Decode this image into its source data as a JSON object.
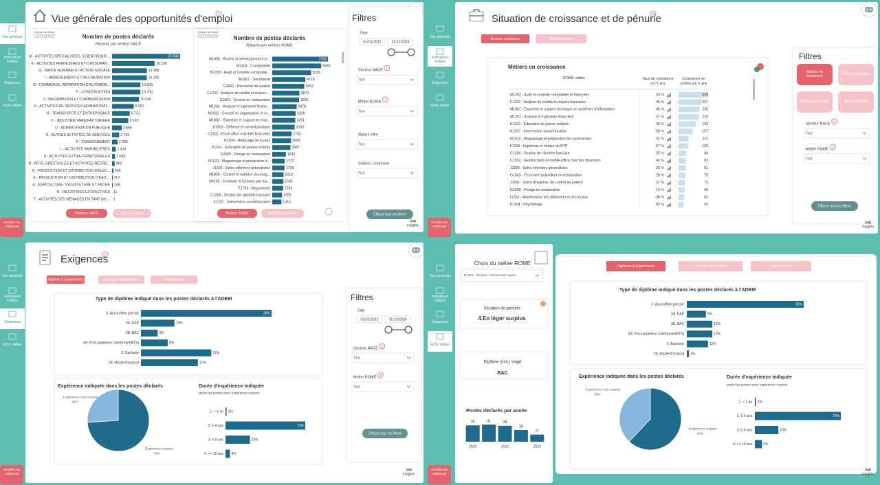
{
  "nav": {
    "items": [
      "Vue générale",
      "Indicateurs métiers",
      "Exigences",
      "Fiche métier"
    ],
    "jobboard": "Accéder au Jobboard"
  },
  "logo": [
    "Job",
    "insights"
  ],
  "filters": {
    "title": "Filtres",
    "date": "Date",
    "start": "01/01/2021",
    "end": "31/12/2024",
    "nace": "Secteur NACE",
    "rome": "Métier ROME",
    "nature": "Nature offre",
    "canton": "Canton, commune",
    "all": "Tout",
    "clear": "Effacer tous les filtres"
  },
  "overview": {
    "title": "Vue générale des opportunités d'emploi",
    "detail_level": "Niveau de détail",
    "detail_levels": [
      "1",
      "2",
      "3",
      "4",
      "5"
    ],
    "nace_buttons": [
      "Secteurs NACE",
      "Lieu de travail"
    ],
    "rome_buttons": [
      "Métiers ROME",
      "Métiers en pénurie"
    ]
  },
  "growth": {
    "title": "Situation de croissance et de pénurie",
    "tabs": [
      "Analyse croissance",
      "Analyse pénurie"
    ],
    "filter_buttons": [
      "Métiers en croissance",
      "Métiers émergents",
      "Métiers en tension",
      "Autres métiers"
    ],
    "table": {
      "title": "Métiers en croissance",
      "columns": [
        "ROME métier",
        "Taux de croissance sur 5 ans",
        "Croissance en postes sur 5 ans"
      ],
      "rows": [
        [
          "M1202 - Audit et contrôle comptables et financiers",
          "33 %",
          329
        ],
        [
          "C1202 - Analyse de crédits et risques bancaires",
          "45 %",
          257
        ],
        [
          "M1802 - Expertise et support technique en systèmes d'information",
          "45 %",
          235
        ],
        [
          "M1201 - Analyse et ingénierie financière",
          "37 %",
          226
        ],
        [
          "K1202 - Éducation de jeunes enfants",
          "36 %",
          192
        ],
        [
          "K1207 - Intervention socioéducative",
          "58 %",
          157
        ],
        [
          "N1103 - Magasinage et préparation de commandes",
          "32 %",
          112
        ],
        [
          "F1106 - Ingénierie et études du BTP",
          "57 %",
          109
        ],
        [
          "C1206 - Gestion de clientèle bancaire",
          "35 %",
          84
        ],
        [
          "C1302 - Gestion back et middle-office marchés financiers",
          "42 %",
          82
        ],
        [
          "J1506 - Soins infirmiers généralistes",
          "23 %",
          81
        ],
        [
          "G1603 - Personnel polyvalent en restauration",
          "28 %",
          75
        ],
        [
          "J1501 - Soins d'hygiène, de confort du patient",
          "37 %",
          72
        ],
        [
          "G1605 - Plonge en restauration",
          "16 %",
          69
        ],
        [
          "I1203 - Maintenance des bâtiments et des locaux",
          "38 %",
          63
        ],
        [
          "K1104 - Psychologie",
          "83 %",
          56
        ]
      ]
    }
  },
  "requirements": {
    "title": "Exigences",
    "tabs": [
      "Diplôme & Expériences",
      "Langues demandées",
      "Compétences"
    ]
  },
  "job_sheet": {
    "choice_title": "Choix du métier ROME",
    "choice_value": "D1403 - Relation commerciale auprè...",
    "shortage_title": "Situation de pénurie",
    "shortage_value": "4.En léger surplus",
    "diploma_title": "Diplôme (min.) exigé",
    "diploma_value": "BAC",
    "tabs": [
      "Diplômes & Expériences",
      "Langues demandées",
      "Compétences"
    ]
  },
  "chart_data": [
    {
      "type": "bar",
      "orientation": "horizontal",
      "title": "Nombre de postes déclarés",
      "subtitle": "Répartis par secteur NACE",
      "color": "#1e6b8c",
      "categories": [
        "M - ACTIVITÉS SPÉCIALISÉES, SCIENTIFIQUE...",
        "K - ACTIVITÉS FINANCIÈRES ET D'ASSURAN...",
        "Q - SANTÉ HUMAINE ET ACTION SOCIALE",
        "I - HÉBERGEMENT ET RESTAURATION",
        "G - COMMERCE; RÉPARATION D'AUTOMOB...",
        "F - CONSTRUCTION",
        "J - INFORMATION ET COMMUNICATION",
        "N - ACTIVITÉS DE SERVICES ADMINISTRAT...",
        "H - TRANSPORTS ET ENTREPOSAGE",
        "C - INDUSTRIE MANUFACTURIÈRE",
        "O - ADMINISTRATION PUBLIQUE",
        "S - AUTRES ACTIVITÉS DE SERVICES",
        "P - ENSEIGNEMENT",
        "L - ACTIVITÉS IMMOBILIÈRES",
        "U - ACTIVITÉS EXTRA-TERRITORIALES",
        "R - ARTS, SPECTACLES ET ACTIVITÉS RÉCRÉ...",
        "D - PRODUCTION ET DISTRIBUTION D'ÉLEC...",
        "E - PRODUCTION ET DISTRIBUTION D'EAU;...",
        "A - AGRICULTURE, SYLVICULTURE ET PÊCHE",
        "B - INDUSTRIES EXTRACTIVES",
        "T - ACTIVITÉS DES MÉNAGES EN TANT QU'..."
      ],
      "values": [
        25944,
        16206,
        13288,
        13242,
        10805,
        10793,
        10240,
        8261,
        6731,
        6163,
        3666,
        2703,
        2066,
        1419,
        1099,
        992,
        499,
        267,
        248,
        11,
        1
      ],
      "value_labels": [
        "25 944",
        "16 206",
        "13 288",
        "13 242",
        "10 805",
        "10 793",
        "10 240",
        "8 261",
        "6 731",
        "6 163",
        "3 666",
        "2 703",
        "2 066",
        "1 419",
        "1 099",
        "992",
        "499",
        "267",
        "248",
        "11",
        "1"
      ]
    },
    {
      "type": "bar",
      "orientation": "horizontal",
      "title": "Nombre de postes déclarés",
      "subtitle": "Répartis par métiers ROME",
      "color": "#1e6b8c",
      "categories": [
        "M1805 - Études et développement in...",
        "M1203 - Comptabilité",
        "M1202 - Audit et contrôle comptable...",
        "M1607 - Secrétariat",
        "G1602 - Personnel de cuisine",
        "C1202 - Analyse de crédits et risques ...",
        "G1803 - Service en restauration",
        "M1201 - Analyse et ingénierie financi...",
        "M1402 - Conseil en organisation et m...",
        "M1802 - Expertise et support techniq...",
        "K1903 - Défense et conseil juridique",
        "C1301 - Front office marchés financiers",
        "K2204 - Nettoyage de locaux",
        "K1202 - Éducation de jeunes enfants",
        "G1605 - Plonge en restauration",
        "N1103 - Magasinage et préparation d...",
        "J1506 - Soins infirmiers généralistes",
        "M1806 - Conseil et maîtrise d'ouvrag...",
        "N4105 - Conduite et livraison par tou...",
        "F1703 - Maçonnerie",
        "C1206 - Gestion de clientèle bancaire",
        "K1207 - Intervention socioéducative"
      ],
      "values": [
        7938,
        6966,
        5535,
        4718,
        4562,
        3879,
        3820,
        3478,
        3326,
        3281,
        3193,
        2763,
        2669,
        2587,
        1933,
        1772,
        1738,
        1610,
        1585,
        1553,
        1393,
        1314
      ]
    },
    {
      "type": "bar",
      "orientation": "horizontal",
      "title": "Type de diplôme indiqué dans les postes déclarés à l'ADEM",
      "color": "#1e6b8c",
      "categories": [
        "0. Aucun/Non précisé",
        "3A. DAP",
        "3B. BAC",
        "4/5. Post-supérieur (14e/brevet/BTS)",
        "6. Bachelor",
        "7/8. Master/Doctorat"
      ],
      "values": [
        39,
        10,
        5,
        8,
        21,
        17
      ],
      "value_labels": [
        "39%",
        "10%",
        "5%",
        "8%",
        "21%",
        "17%"
      ]
    },
    {
      "type": "pie",
      "title": "Expérience indiquée dans les postes déclarés",
      "categories": [
        "Expérience non requise",
        "Expérience requise"
      ],
      "values": [
        26,
        74
      ],
      "value_labels": [
        "26%",
        "74%"
      ],
      "colors": [
        "#86b6dc",
        "#1e6b8c"
      ]
    },
    {
      "type": "bar",
      "orientation": "horizontal",
      "title": "Durée d'expérience indiquée",
      "subtitle": "parmi les postes avec expérience requise",
      "color": "#1e6b8c",
      "categories": [
        "1. < 1 an",
        "2. 1-4 ans",
        "3. 5-9 ans",
        "4. >= 10 ans"
      ],
      "values": [
        1,
        72,
        22,
        4
      ],
      "value_labels": [
        "1%",
        "72%",
        "22%",
        "4%"
      ]
    },
    {
      "type": "bar",
      "orientation": "vertical",
      "title": "Postes déclarés par année",
      "color": "#1e6b8c",
      "categories": [
        "2020",
        null,
        "2022",
        null,
        "2024"
      ],
      "values": [
        39,
        41,
        38,
        28,
        17
      ]
    },
    {
      "type": "bar",
      "orientation": "horizontal",
      "title": "Type de diplôme indiqué dans les postes déclarés à l'ADEM",
      "color": "#1e6b8c",
      "categories": [
        "0. Aucun/Non précisé",
        "3A. DAP",
        "3B. BAC",
        "4/5. Post-supérieur (14e/brevet/BTS)",
        "6. Bachelor",
        "7/8. Master/Doctorat"
      ],
      "values": [
        55,
        9,
        12,
        12,
        10,
        1
      ],
      "value_labels": [
        "55%",
        "9%",
        "12%",
        "12%",
        "10%",
        "1%"
      ]
    },
    {
      "type": "pie",
      "title": "Expérience indiquée dans les postes déclarés",
      "categories": [
        "Expérience non requise",
        "Expérience requise"
      ],
      "values": [
        38,
        62
      ],
      "value_labels": [
        "38%",
        "62%"
      ],
      "colors": [
        "#86b6dc",
        "#1e6b8c"
      ]
    },
    {
      "type": "bar",
      "orientation": "horizontal",
      "title": "Durée d'expérience indiquée",
      "subtitle": "parmi les postes avec expérience requise",
      "color": "#1e6b8c",
      "categories": [
        "1. < 1 an",
        "2. 1-4 ans",
        "3. 5-9 ans",
        "4. >= 10 ans"
      ],
      "values": [
        1,
        73,
        20,
        6
      ],
      "value_labels": [
        "1%",
        "73%",
        "20%",
        "6%"
      ]
    }
  ]
}
